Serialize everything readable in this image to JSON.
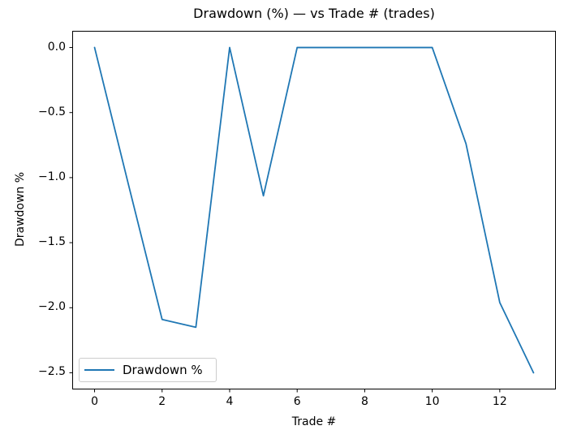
{
  "chart_data": {
    "type": "line",
    "title": "Drawdown (%) — vs Trade # (trades)",
    "xlabel": "Trade #",
    "ylabel": "Drawdown %",
    "x": [
      0,
      1,
      2,
      3,
      4,
      5,
      6,
      7,
      8,
      9,
      10,
      11,
      12,
      13
    ],
    "series": [
      {
        "name": "Drawdown %",
        "color": "#1f77b4",
        "values": [
          0.0,
          -1.05,
          -2.09,
          -2.15,
          0.0,
          -1.14,
          0.0,
          0.0,
          0.0,
          0.0,
          0.0,
          -0.74,
          -1.96,
          -2.5
        ]
      }
    ],
    "xlim": [
      -0.65,
      13.65
    ],
    "ylim": [
      -2.625,
      0.125
    ],
    "xticks": [
      0,
      2,
      4,
      6,
      8,
      10,
      12
    ],
    "xtick_labels": [
      "0",
      "2",
      "4",
      "6",
      "8",
      "10",
      "12"
    ],
    "yticks": [
      0.0,
      -0.5,
      -1.0,
      -1.5,
      -2.0,
      -2.5
    ],
    "ytick_labels": [
      "0.0",
      "−0.5",
      "−1.0",
      "−1.5",
      "−2.0",
      "−2.5"
    ],
    "grid": false,
    "legend": {
      "position": "lower left",
      "entries": [
        "Drawdown %"
      ]
    },
    "colors": {
      "line": "#1f77b4",
      "frame": "#000000",
      "tick": "#000000",
      "text": "#000000",
      "legend_border": "#cccccc",
      "background": "#ffffff"
    }
  }
}
